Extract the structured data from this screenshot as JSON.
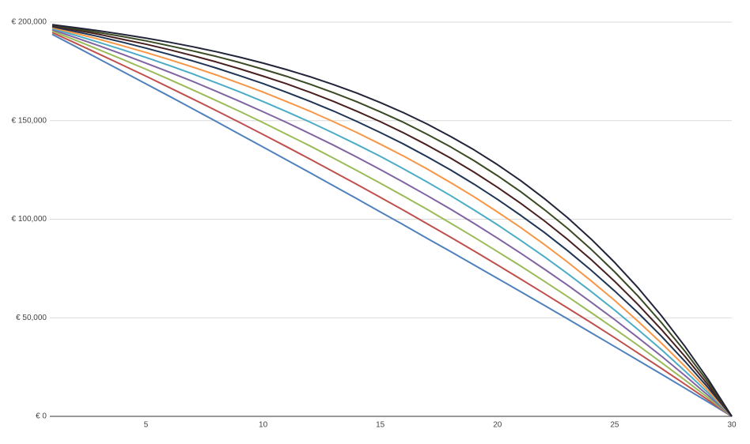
{
  "chart_data": {
    "type": "line",
    "x": [
      1,
      2,
      3,
      4,
      5,
      6,
      7,
      8,
      9,
      10,
      11,
      12,
      13,
      14,
      15,
      16,
      17,
      18,
      19,
      20,
      21,
      22,
      23,
      24,
      25,
      26,
      27,
      28,
      29,
      30
    ],
    "xlim": [
      1,
      30
    ],
    "xticks": [
      5,
      10,
      15,
      20,
      25,
      30
    ],
    "ylim": [
      0,
      200000
    ],
    "yticks": [
      {
        "value": 0,
        "label": "€ 0"
      },
      {
        "value": 50000,
        "label": "€ 50,000"
      },
      {
        "value": 100000,
        "label": "€ 100,000"
      },
      {
        "value": 150000,
        "label": "€ 150,000"
      },
      {
        "value": 200000,
        "label": "€ 200,000"
      }
    ],
    "grid": true,
    "series": [
      {
        "color": "#4f81bd",
        "values": [
          193800,
          187600,
          181300,
          175000,
          168700,
          162400,
          156000,
          149600,
          143100,
          136600,
          130100,
          123600,
          117000,
          110400,
          103700,
          97100,
          90300,
          83600,
          76800,
          70000,
          63200,
          56300,
          49400,
          42400,
          35400,
          28400,
          21400,
          14300,
          7200,
          0
        ]
      },
      {
        "color": "#c0504d",
        "values": [
          194700,
          189300,
          183800,
          178200,
          172600,
          166800,
          161000,
          155100,
          149100,
          143000,
          136800,
          130500,
          124100,
          117700,
          111100,
          104500,
          97700,
          90900,
          83900,
          76800,
          69600,
          62300,
          54900,
          47500,
          39900,
          32100,
          24300,
          16300,
          8200,
          0
        ]
      },
      {
        "color": "#9bbb59",
        "values": [
          195400,
          190800,
          186000,
          181100,
          176100,
          170900,
          165600,
          160200,
          154700,
          149000,
          143100,
          137200,
          131000,
          124700,
          118300,
          111700,
          105000,
          98000,
          90900,
          83600,
          76200,
          68500,
          60700,
          52600,
          44400,
          36000,
          27300,
          18400,
          9300,
          0
        ]
      },
      {
        "color": "#8064a2",
        "values": [
          196100,
          192100,
          188000,
          183700,
          179200,
          174600,
          169900,
          164900,
          159800,
          154500,
          149100,
          143400,
          137600,
          131500,
          125200,
          118700,
          112000,
          105100,
          97900,
          90400,
          82700,
          74700,
          66500,
          57900,
          49100,
          39900,
          30500,
          20700,
          10500,
          0
        ]
      },
      {
        "color": "#4bacc6",
        "values": [
          196700,
          193300,
          189700,
          186000,
          182100,
          178000,
          173700,
          169200,
          164600,
          159700,
          154600,
          149300,
          143700,
          137900,
          131900,
          125500,
          118900,
          112000,
          104700,
          97200,
          89200,
          81000,
          72300,
          63300,
          53900,
          44000,
          33800,
          23000,
          11800,
          0
        ]
      },
      {
        "color": "#f79646",
        "values": [
          197200,
          194300,
          191300,
          188000,
          184600,
          181000,
          177200,
          173200,
          168900,
          164500,
          159700,
          154800,
          149500,
          144000,
          138100,
          132000,
          125500,
          118600,
          111400,
          103700,
          95700,
          87200,
          78200,
          68700,
          58800,
          48200,
          37100,
          25400,
          13000,
          0
        ]
      },
      {
        "color": "#1f3556",
        "values": [
          197700,
          195200,
          192600,
          189800,
          186800,
          183600,
          180300,
          176700,
          172800,
          168800,
          164400,
          159800,
          154900,
          149600,
          144000,
          138100,
          131700,
          125000,
          117800,
          110100,
          101900,
          93300,
          84000,
          74100,
          63600,
          52500,
          40600,
          27900,
          14400,
          0
        ]
      },
      {
        "color": "#4a1f1f",
        "values": [
          198100,
          196000,
          193800,
          191300,
          188800,
          186000,
          183000,
          179800,
          176300,
          172600,
          168700,
          164400,
          159800,
          154800,
          149500,
          143800,
          137600,
          131000,
          123900,
          116200,
          108000,
          99200,
          89700,
          79500,
          68500,
          56700,
          44000,
          30400,
          15800,
          0
        ]
      },
      {
        "color": "#3a4a22",
        "values": [
          198400,
          196600,
          194700,
          192700,
          190500,
          188000,
          185400,
          182600,
          179500,
          176100,
          172500,
          168500,
          164200,
          159600,
          154500,
          149100,
          143100,
          136700,
          129700,
          122100,
          113900,
          104900,
          95300,
          84700,
          73300,
          61000,
          47500,
          33000,
          17200,
          0
        ]
      },
      {
        "color": "#22243a",
        "values": [
          198700,
          197200,
          195600,
          193800,
          191900,
          189800,
          187500,
          185000,
          182200,
          179200,
          175900,
          172300,
          168300,
          164000,
          159200,
          154000,
          148300,
          142000,
          135200,
          127700,
          119500,
          110500,
          100700,
          89900,
          78100,
          65200,
          51000,
          35500,
          18600,
          0
        ]
      }
    ]
  }
}
